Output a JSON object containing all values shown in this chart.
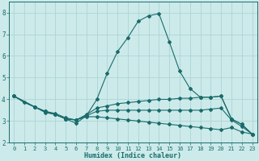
{
  "xlabel": "Humidex (Indice chaleur)",
  "xlim": [
    -0.5,
    23.5
  ],
  "ylim": [
    2.0,
    8.5
  ],
  "bg_color": "#cceaea",
  "grid_color": "#aed4d4",
  "line_color": "#1a6b6b",
  "xticks": [
    0,
    1,
    2,
    3,
    4,
    5,
    6,
    7,
    8,
    9,
    10,
    11,
    12,
    13,
    14,
    15,
    16,
    17,
    18,
    19,
    20,
    21,
    22,
    23
  ],
  "yticks": [
    2,
    3,
    4,
    5,
    6,
    7,
    8
  ],
  "lines": [
    {
      "x": [
        0,
        1,
        2,
        3,
        4,
        5,
        6,
        7,
        8,
        9,
        10,
        11,
        12,
        13,
        14,
        15,
        16,
        17,
        18,
        19,
        20,
        21,
        22,
        23
      ],
      "y": [
        4.15,
        3.85,
        3.65,
        3.4,
        3.3,
        3.1,
        2.9,
        3.25,
        4.0,
        5.2,
        6.2,
        6.85,
        7.6,
        7.85,
        7.95,
        6.65,
        5.3,
        4.5,
        4.1,
        4.1,
        4.15,
        3.1,
        2.85,
        2.4
      ]
    },
    {
      "x": [
        0,
        2,
        3,
        4,
        5,
        6,
        7,
        8,
        9,
        10,
        11,
        12,
        13,
        14,
        15,
        16,
        17,
        18,
        19,
        20,
        21,
        22,
        23
      ],
      "y": [
        4.15,
        3.65,
        3.45,
        3.35,
        3.15,
        3.05,
        3.3,
        3.6,
        3.7,
        3.8,
        3.85,
        3.9,
        3.95,
        4.0,
        4.0,
        4.05,
        4.05,
        4.1,
        4.1,
        4.15,
        3.1,
        2.85,
        2.4
      ]
    },
    {
      "x": [
        0,
        2,
        3,
        4,
        5,
        6,
        7,
        8,
        9,
        10,
        11,
        12,
        13,
        14,
        15,
        16,
        17,
        18,
        19,
        20,
        21,
        22,
        23
      ],
      "y": [
        4.15,
        3.65,
        3.45,
        3.3,
        3.1,
        3.05,
        3.25,
        3.45,
        3.5,
        3.5,
        3.5,
        3.5,
        3.5,
        3.5,
        3.5,
        3.5,
        3.5,
        3.5,
        3.55,
        3.6,
        3.05,
        2.75,
        2.4
      ]
    },
    {
      "x": [
        0,
        2,
        3,
        4,
        5,
        6,
        7,
        8,
        9,
        10,
        11,
        12,
        13,
        14,
        15,
        16,
        17,
        18,
        19,
        20,
        21,
        22,
        23
      ],
      "y": [
        4.15,
        3.65,
        3.45,
        3.3,
        3.1,
        3.05,
        3.2,
        3.2,
        3.15,
        3.1,
        3.05,
        3.0,
        2.95,
        2.9,
        2.85,
        2.8,
        2.75,
        2.7,
        2.65,
        2.6,
        2.7,
        2.5,
        2.4
      ]
    }
  ]
}
